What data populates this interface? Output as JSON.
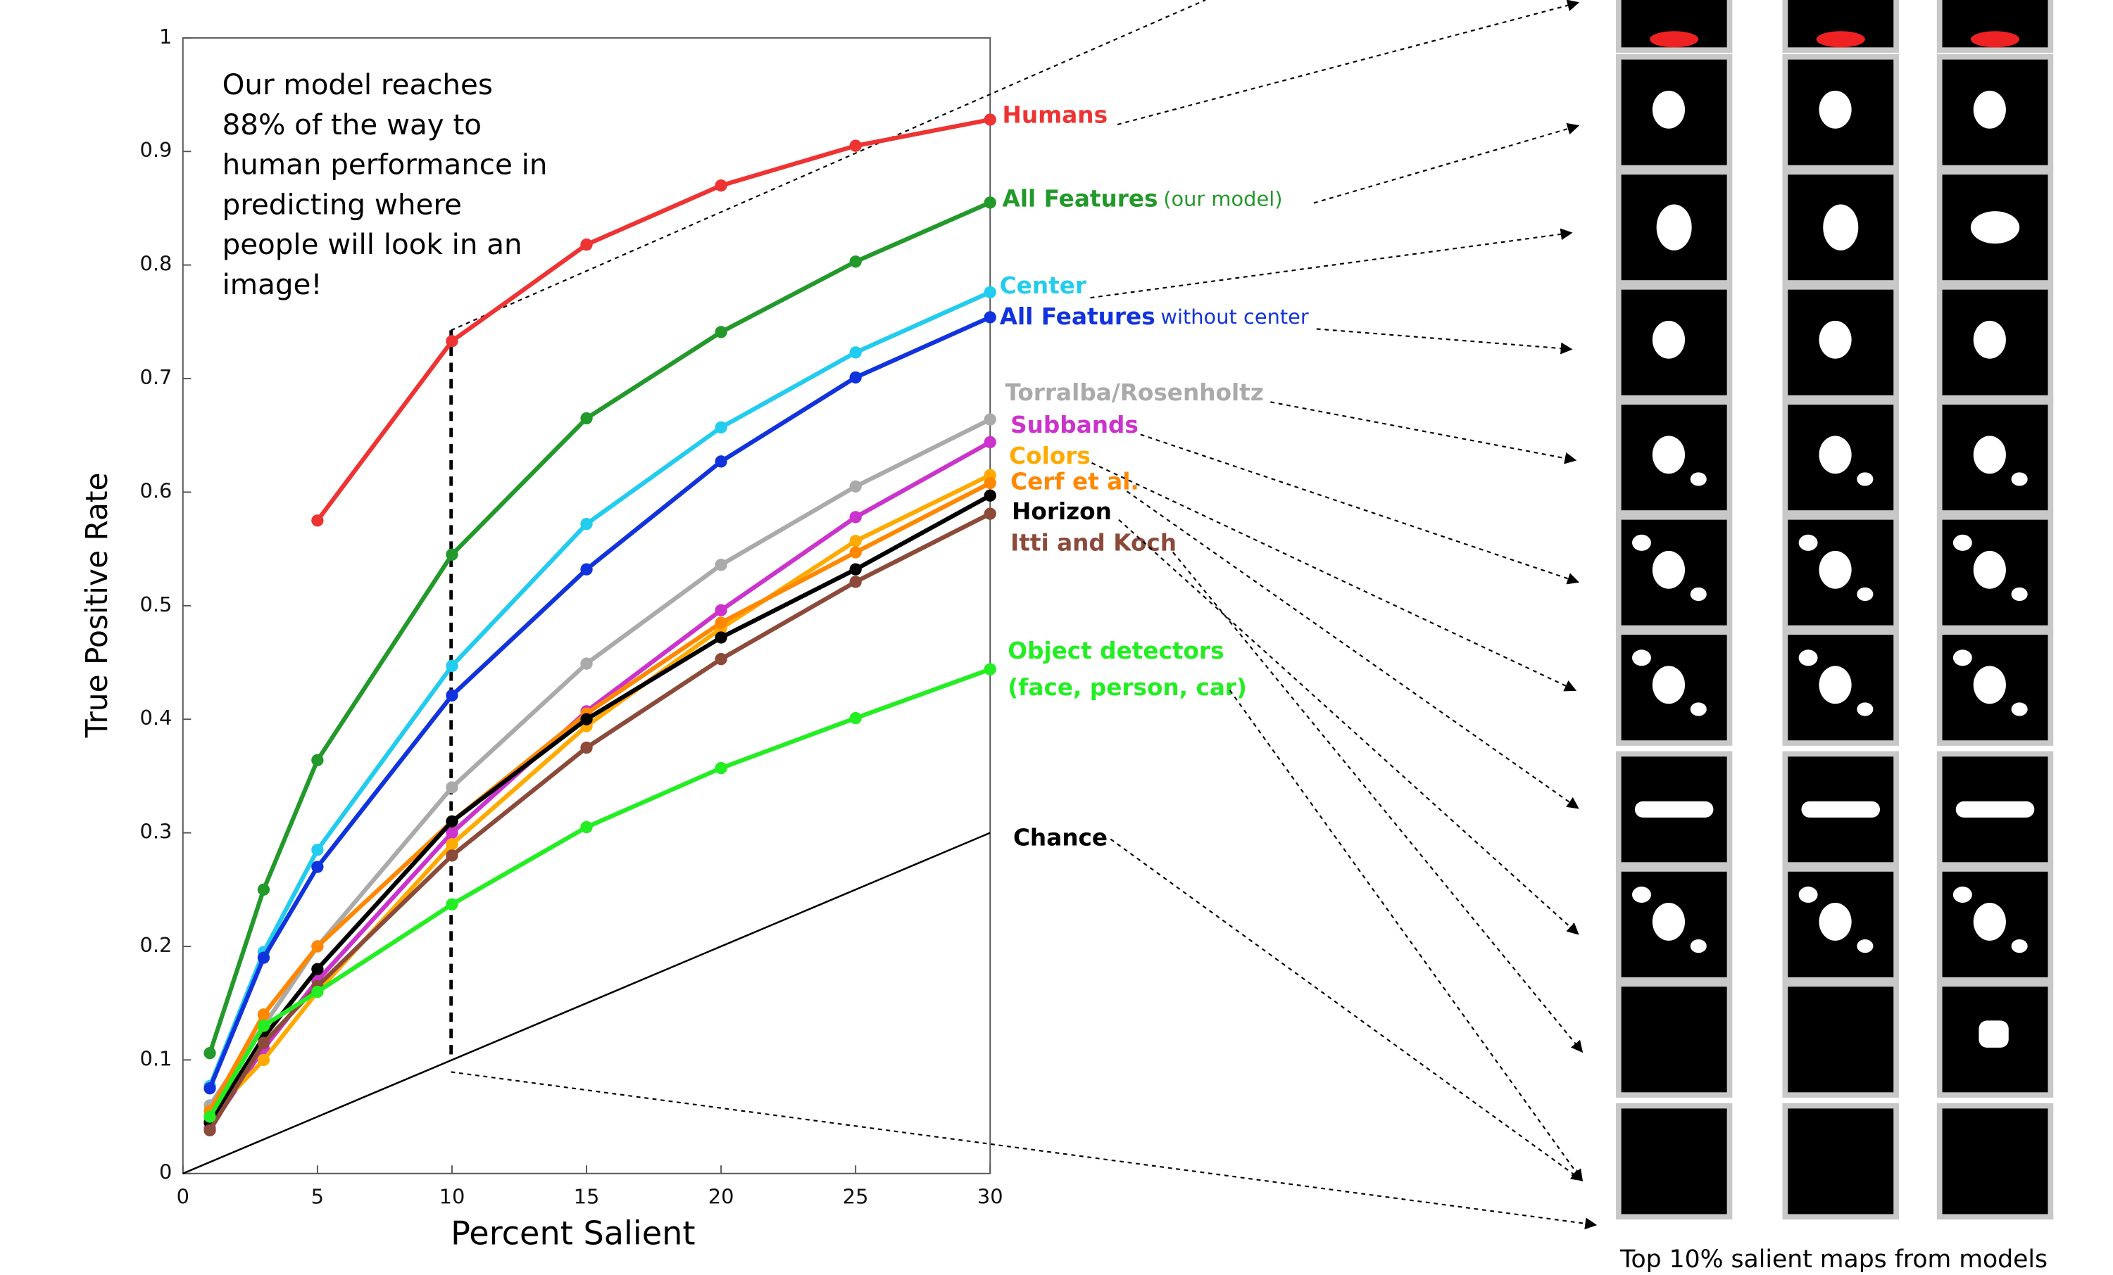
{
  "chart_data": {
    "type": "line",
    "x_label": "Percent Salient",
    "y_label": "True Positive Rate",
    "annotation": [
      "Our model reaches",
      "88% of the way to",
      "human performance in",
      "predicting where",
      "people will look in an",
      "image!"
    ],
    "x": [
      1,
      3,
      5,
      10,
      15,
      20,
      25,
      30
    ],
    "xlim": [
      0,
      30
    ],
    "xticks": [
      0,
      5,
      10,
      15,
      20,
      25,
      30
    ],
    "ylim": [
      0,
      1
    ],
    "yticks": [
      0,
      0.1,
      0.2,
      0.3,
      0.4,
      0.5,
      0.6,
      0.7,
      0.8,
      0.9,
      1
    ],
    "series": [
      {
        "name": "Humans",
        "color": "#ee3333",
        "values": [
          null,
          null,
          0.575,
          0.733,
          0.818,
          0.87,
          0.905,
          0.928
        ]
      },
      {
        "name": "All Features",
        "note": "(our model)",
        "color": "#22992a",
        "values": [
          0.106,
          0.25,
          0.364,
          0.545,
          0.665,
          0.741,
          0.803,
          0.855
        ]
      },
      {
        "name": "Center",
        "color": "#22ccee",
        "values": [
          0.077,
          0.195,
          0.285,
          0.447,
          0.572,
          0.657,
          0.723,
          0.776
        ]
      },
      {
        "name": "All Features",
        "note": "without center",
        "color": "#1133dd",
        "values": [
          0.075,
          0.19,
          0.27,
          0.421,
          0.532,
          0.627,
          0.701,
          0.754
        ]
      },
      {
        "name": "Torralba/Rosenholtz",
        "color": "#aaaaaa",
        "values": [
          0.06,
          0.13,
          0.2,
          0.34,
          0.449,
          0.536,
          0.605,
          0.664
        ]
      },
      {
        "name": "Subbands",
        "color": "#cc33cc",
        "values": [
          0.04,
          0.11,
          0.17,
          0.3,
          0.407,
          0.496,
          0.578,
          0.644
        ]
      },
      {
        "name": "Colors",
        "color": "#ffaa00",
        "values": [
          0.05,
          0.1,
          0.16,
          0.29,
          0.394,
          0.48,
          0.557,
          0.615
        ]
      },
      {
        "name": "Cerf et al.",
        "color": "#ff8800",
        "values": [
          0.055,
          0.14,
          0.2,
          0.31,
          0.405,
          0.485,
          0.547,
          0.608
        ]
      },
      {
        "name": "Horizon",
        "color": "#000000",
        "values": [
          0.045,
          0.12,
          0.18,
          0.31,
          0.4,
          0.472,
          0.532,
          0.597
        ]
      },
      {
        "name": "Itti and Koch",
        "color": "#8b4a3a",
        "values": [
          0.038,
          0.115,
          0.165,
          0.28,
          0.375,
          0.453,
          0.521,
          0.581
        ]
      },
      {
        "name": "Object detectors",
        "note": "(face, person, car)",
        "color": "#22ee22",
        "values": [
          0.05,
          0.13,
          0.16,
          0.237,
          0.305,
          0.357,
          0.401,
          0.444
        ]
      }
    ],
    "chance": {
      "name": "Chance",
      "color": "#000000",
      "x": [
        0,
        30
      ],
      "values": [
        0,
        0.3
      ]
    }
  },
  "caption": "Top 10% salient maps from models"
}
